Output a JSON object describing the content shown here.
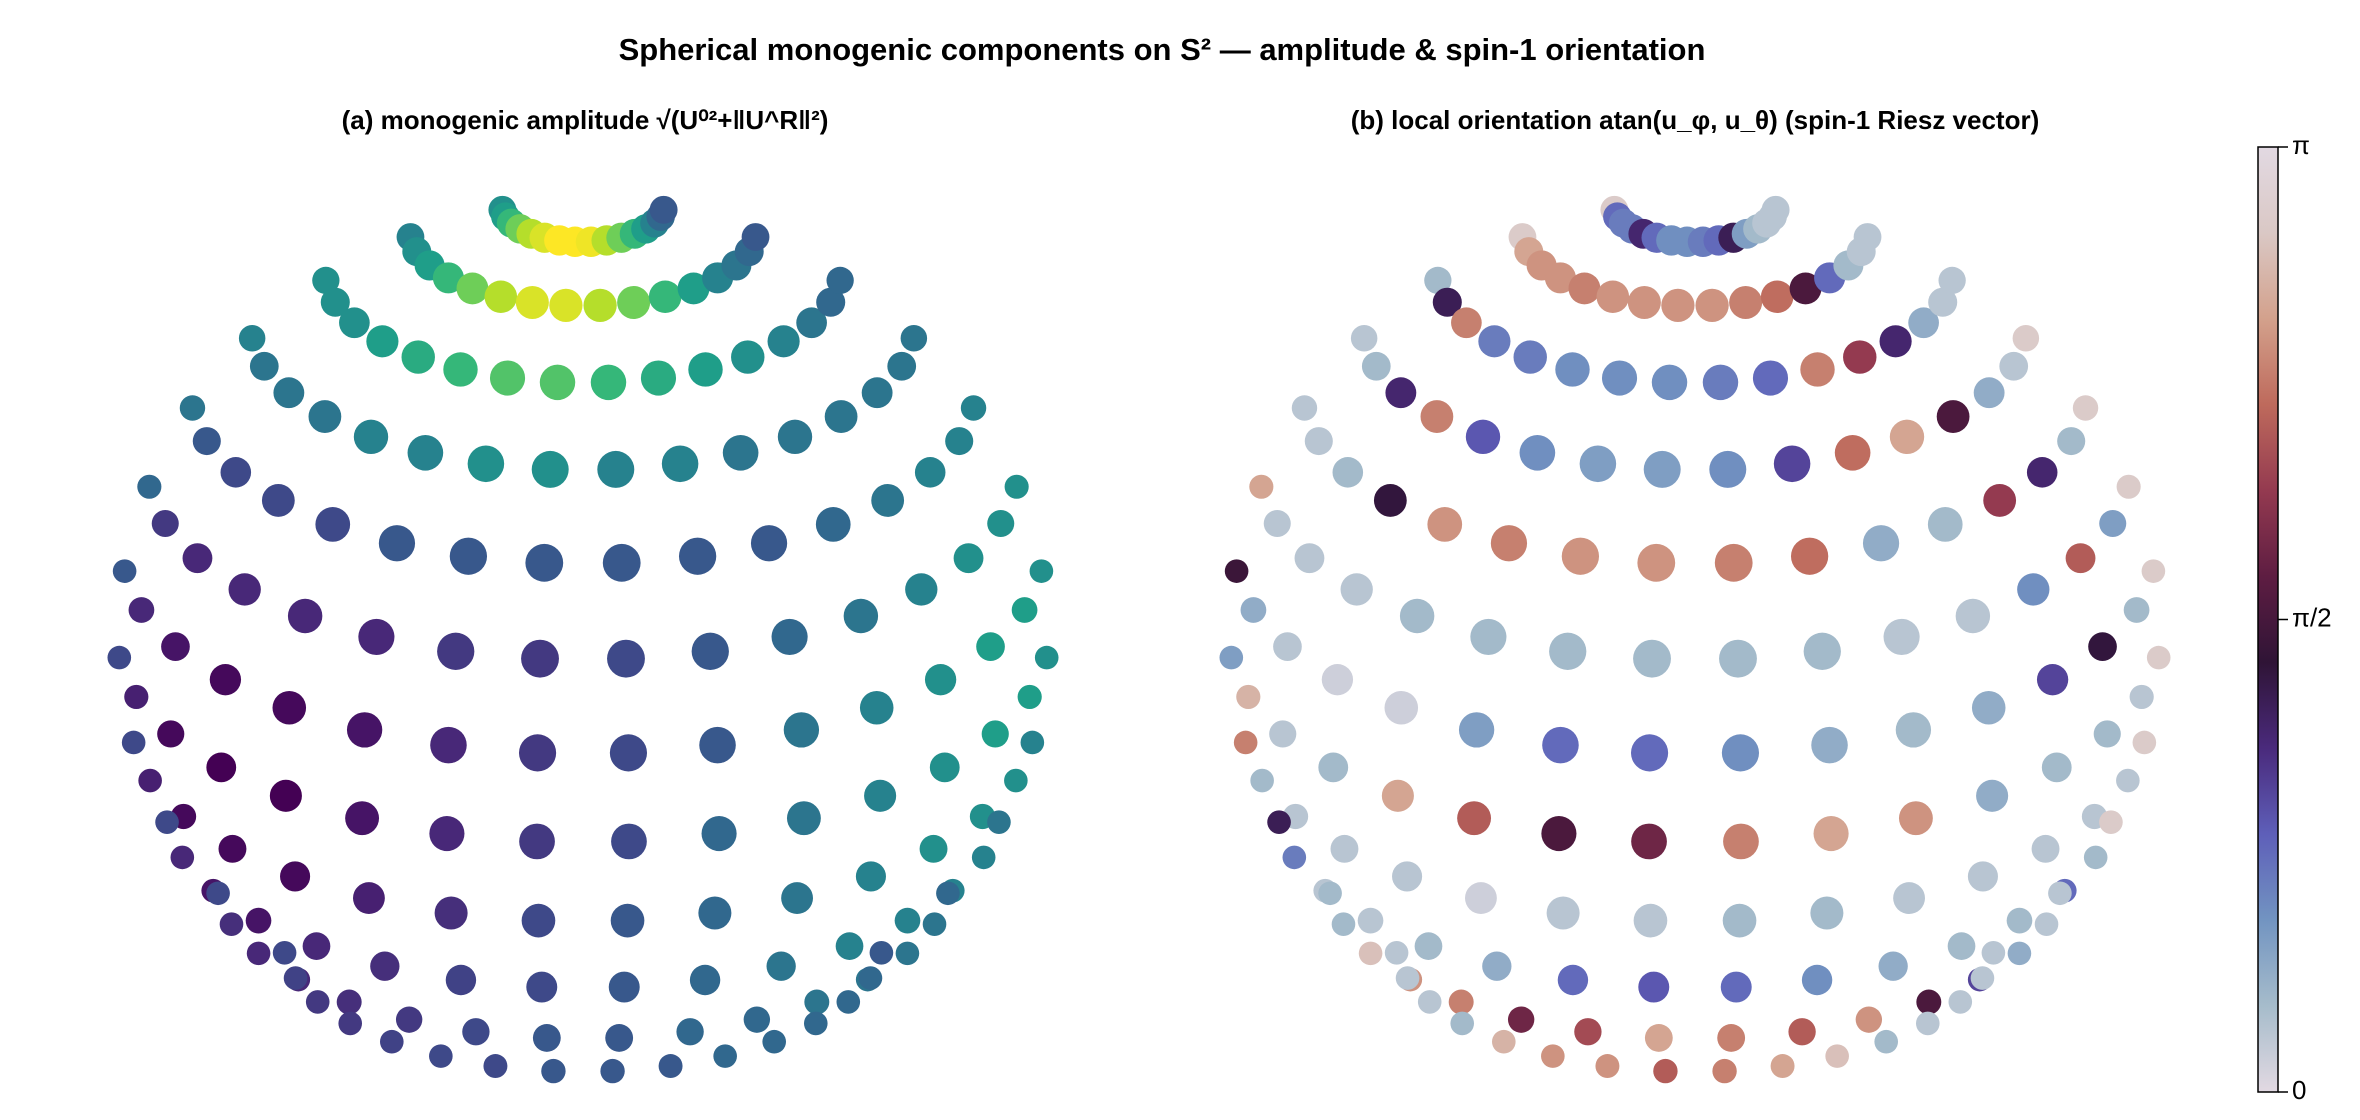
{
  "title": "Spherical monogenic components on S² — amplitude & spin-1 orientation",
  "chart_data": [
    {
      "type": "sphere-scatter",
      "title": "(a) monogenic amplitude √(U⁰²+‖U^R‖²)",
      "colormap": "viridis",
      "values": [
        [
          0.55,
          0.6,
          0.7,
          0.8,
          0.9,
          0.95,
          1,
          1,
          0.98,
          0.9,
          0.8,
          0.7,
          0.6,
          0.5,
          0.4,
          0.35
        ],
        [
          0.5,
          0.55,
          0.6,
          0.7,
          0.8,
          0.9,
          0.95,
          0.95,
          0.9,
          0.8,
          0.7,
          0.6,
          0.5,
          0.45,
          0.4,
          0.35
        ],
        [
          0.55,
          0.55,
          0.55,
          0.6,
          0.65,
          0.7,
          0.75,
          0.75,
          0.7,
          0.65,
          0.6,
          0.55,
          0.5,
          0.45,
          0.4,
          0.4
        ],
        [
          0.5,
          0.45,
          0.45,
          0.45,
          0.5,
          0.5,
          0.55,
          0.55,
          0.5,
          0.5,
          0.45,
          0.45,
          0.45,
          0.45,
          0.45,
          0.45
        ],
        [
          0.45,
          0.35,
          0.3,
          0.3,
          0.3,
          0.35,
          0.35,
          0.35,
          0.35,
          0.35,
          0.35,
          0.4,
          0.45,
          0.5,
          0.5,
          0.5
        ],
        [
          0.4,
          0.25,
          0.2,
          0.2,
          0.2,
          0.2,
          0.25,
          0.25,
          0.3,
          0.35,
          0.4,
          0.45,
          0.5,
          0.55,
          0.55,
          0.55
        ],
        [
          0.35,
          0.2,
          0.15,
          0.12,
          0.12,
          0.15,
          0.2,
          0.25,
          0.3,
          0.35,
          0.45,
          0.5,
          0.55,
          0.6,
          0.6,
          0.55
        ],
        [
          0.3,
          0.18,
          0.12,
          0.1,
          0.1,
          0.15,
          0.2,
          0.25,
          0.3,
          0.4,
          0.45,
          0.5,
          0.55,
          0.6,
          0.6,
          0.55
        ],
        [
          0.3,
          0.18,
          0.12,
          0.12,
          0.12,
          0.18,
          0.22,
          0.3,
          0.35,
          0.4,
          0.45,
          0.5,
          0.55,
          0.55,
          0.55,
          0.5
        ],
        [
          0.3,
          0.2,
          0.15,
          0.15,
          0.2,
          0.22,
          0.28,
          0.3,
          0.35,
          0.4,
          0.45,
          0.5,
          0.5,
          0.5,
          0.5,
          0.45
        ],
        [
          0.3,
          0.22,
          0.2,
          0.2,
          0.22,
          0.25,
          0.3,
          0.35,
          0.35,
          0.4,
          0.4,
          0.45,
          0.45,
          0.45,
          0.45,
          0.4
        ],
        [
          0.3,
          0.28,
          0.25,
          0.25,
          0.28,
          0.3,
          0.3,
          0.35,
          0.35,
          0.35,
          0.4,
          0.4,
          0.4,
          0.4,
          0.4,
          0.35
        ]
      ]
    },
    {
      "type": "sphere-scatter",
      "title": "(b) local orientation atan(u_φ, u_θ)  (spin-1 Riesz vector)",
      "colormap": "twilight",
      "clim": [
        0,
        3.1416
      ],
      "cticks": [
        0,
        {
          "value": 1.5708,
          "label": "π/2"
        },
        {
          "value": 3.1416,
          "label": "π"
        }
      ],
      "values": [
        [
          2.9,
          0.8,
          0.7,
          0.7,
          1.2,
          0.8,
          0.6,
          0.6,
          0.7,
          0.8,
          1.3,
          0.5,
          0.3,
          0.2,
          0.2,
          0.2
        ],
        [
          2.9,
          2.6,
          2.5,
          2.5,
          2.4,
          2.5,
          2.5,
          2.5,
          2.5,
          2.4,
          2.3,
          1.6,
          0.8,
          0.3,
          0.2,
          0.2
        ],
        [
          0.3,
          1.3,
          2.4,
          0.7,
          0.7,
          0.6,
          0.6,
          0.6,
          0.7,
          0.8,
          2.4,
          2.0,
          1.2,
          0.4,
          0.2,
          0.2
        ],
        [
          0.2,
          0.3,
          1.2,
          2.4,
          0.9,
          0.6,
          0.5,
          0.5,
          0.6,
          1.0,
          2.3,
          2.6,
          1.6,
          0.4,
          0.2,
          2.9
        ],
        [
          0.2,
          0.2,
          0.3,
          1.4,
          2.5,
          2.4,
          2.5,
          2.5,
          2.4,
          2.3,
          0.4,
          0.3,
          2.0,
          1.2,
          0.3,
          2.9
        ],
        [
          2.6,
          0.2,
          0.2,
          0.2,
          0.3,
          0.3,
          0.3,
          0.3,
          0.3,
          0.3,
          0.2,
          0.2,
          0.6,
          2.2,
          0.5,
          2.9
        ],
        [
          1.5,
          0.4,
          0.2,
          0.1,
          0.1,
          0.5,
          0.8,
          0.8,
          0.6,
          0.4,
          0.3,
          0.4,
          1.0,
          1.4,
          0.3,
          2.9
        ],
        [
          0.5,
          2.7,
          0.2,
          0.3,
          2.6,
          2.2,
          1.6,
          1.8,
          2.4,
          2.6,
          2.5,
          0.4,
          0.3,
          0.3,
          0.2,
          2.9
        ],
        [
          2.4,
          0.3,
          0.2,
          0.2,
          0.2,
          0.1,
          0.2,
          0.2,
          0.3,
          0.3,
          0.2,
          0.2,
          0.2,
          0.2,
          0.2,
          2.9
        ],
        [
          1.3,
          0.7,
          0.2,
          0.2,
          0.3,
          0.4,
          0.8,
          0.9,
          0.8,
          0.6,
          0.4,
          0.3,
          0.3,
          0.8,
          0.3,
          2.9
        ],
        [
          0.3,
          0.3,
          2.8,
          2.5,
          2.4,
          1.8,
          2.1,
          2.6,
          2.4,
          2.2,
          2.5,
          1.6,
          1.0,
          0.4,
          0.2,
          0.2
        ],
        [
          0.2,
          0.2,
          0.2,
          0.3,
          2.7,
          2.5,
          2.5,
          2.2,
          2.4,
          2.6,
          2.8,
          0.3,
          0.2,
          0.2,
          0.2,
          0.2
        ]
      ]
    }
  ]
}
